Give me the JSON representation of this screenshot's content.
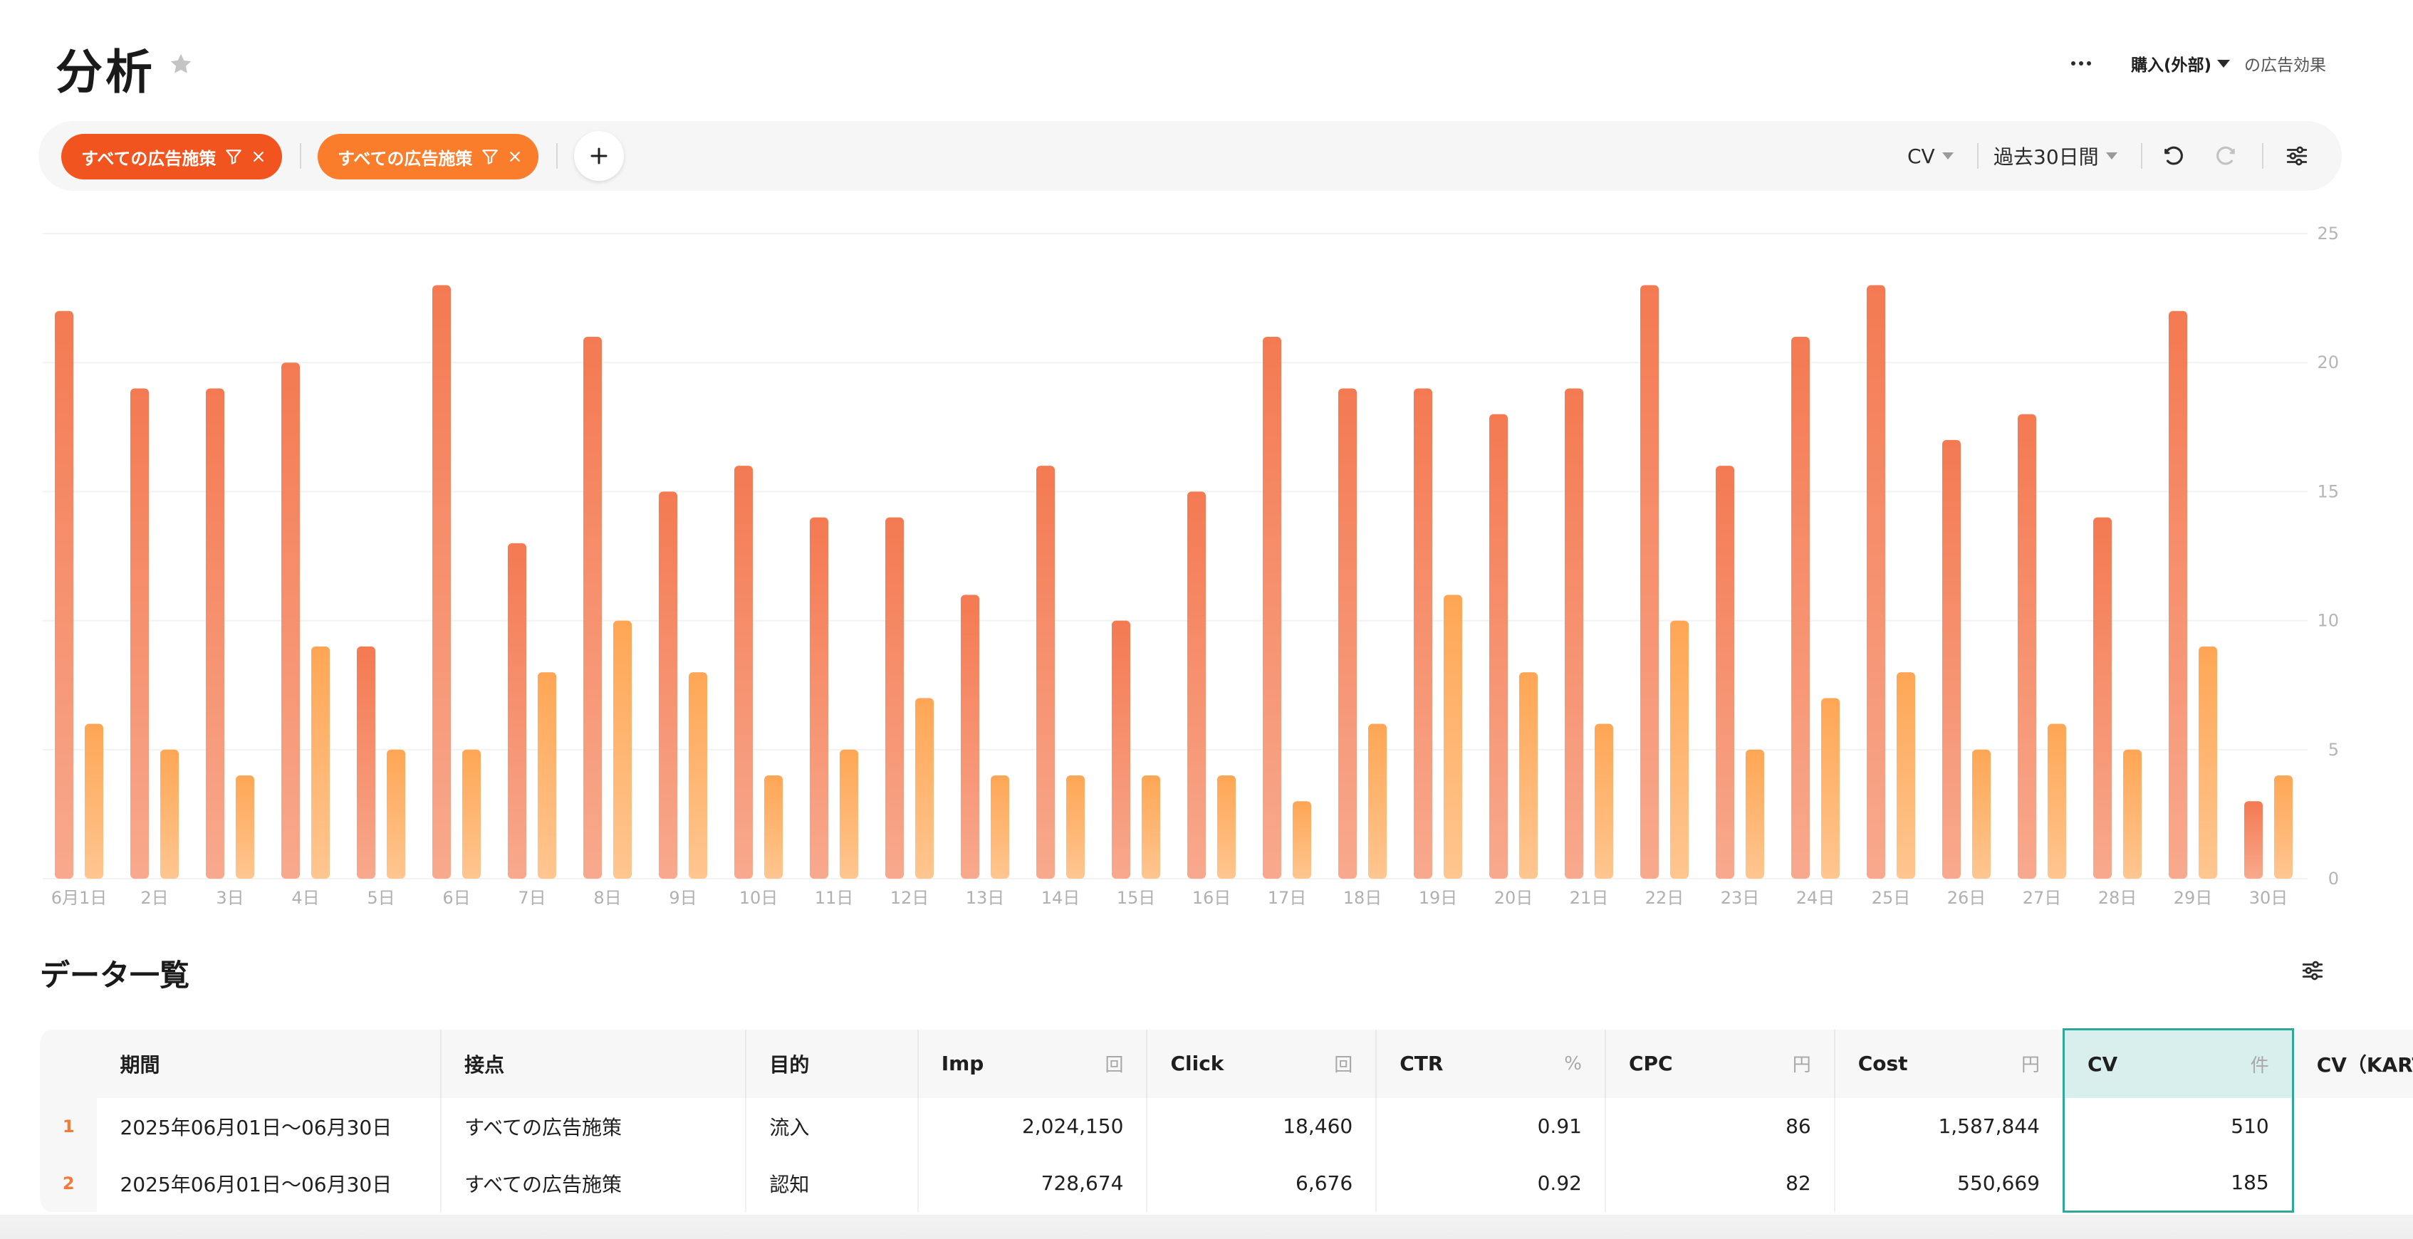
{
  "header": {
    "title": "分析",
    "more_label": "…",
    "conversion_select": "購入(外部)",
    "suffix": "の広告効果"
  },
  "filters": {
    "chips": [
      {
        "label": "すべての広告施策"
      },
      {
        "label": "すべての広告施策"
      }
    ],
    "metric_select": "CV",
    "period_select": "過去30日間"
  },
  "colors": {
    "chip1": "#f2541f",
    "chip2": "#f97d2b",
    "series1": "#f47a52",
    "series2": "#ffae5e",
    "active_column": "#2fa89b"
  },
  "icons": [
    "star-icon",
    "more-icon",
    "filter-icon",
    "close-icon",
    "plus-icon",
    "undo-icon",
    "redo-icon",
    "settings-icon"
  ],
  "chart_data": {
    "type": "bar",
    "title": "",
    "xlabel": "",
    "ylabel": "",
    "ylim": [
      0,
      25
    ],
    "yticks": [
      0,
      5,
      10,
      15,
      20,
      25
    ],
    "y_axis_side": "right",
    "grid": true,
    "categories": [
      "6月1日",
      "2日",
      "3日",
      "4日",
      "5日",
      "6日",
      "7日",
      "8日",
      "9日",
      "10日",
      "11日",
      "12日",
      "13日",
      "14日",
      "15日",
      "16日",
      "17日",
      "18日",
      "19日",
      "20日",
      "21日",
      "22日",
      "23日",
      "24日",
      "25日",
      "26日",
      "27日",
      "28日",
      "29日",
      "30日"
    ],
    "series": [
      {
        "values": [
          22,
          19,
          19,
          20,
          9,
          23,
          13,
          21,
          15,
          16,
          14,
          14,
          11,
          16,
          10,
          15,
          21,
          19,
          19,
          18,
          19,
          23,
          16,
          21,
          23,
          17,
          18,
          14,
          22,
          3
        ]
      },
      {
        "values": [
          6,
          5,
          4,
          9,
          5,
          5,
          8,
          10,
          8,
          4,
          5,
          7,
          4,
          4,
          4,
          4,
          3,
          6,
          11,
          8,
          6,
          10,
          5,
          7,
          8,
          5,
          6,
          5,
          9,
          4
        ]
      }
    ]
  },
  "data_list": {
    "title": "データ一覧",
    "columns": [
      {
        "label": "期間",
        "unit": ""
      },
      {
        "label": "接点",
        "unit": ""
      },
      {
        "label": "目的",
        "unit": ""
      },
      {
        "label": "Imp",
        "unit": "回"
      },
      {
        "label": "Click",
        "unit": "回"
      },
      {
        "label": "CTR",
        "unit": "%"
      },
      {
        "label": "CPC",
        "unit": "円"
      },
      {
        "label": "Cost",
        "unit": "円"
      },
      {
        "label": "CV",
        "unit": "件"
      },
      {
        "label": "CV（KARTE",
        "unit": ""
      }
    ],
    "rows": [
      {
        "index": "1",
        "cells": [
          "2025年06月01日〜06月30日",
          "すべての広告施策",
          "流入",
          "2,024,150",
          "18,460",
          "0.91",
          "86",
          "1,587,844",
          "510",
          ""
        ]
      },
      {
        "index": "2",
        "cells": [
          "2025年06月01日〜06月30日",
          "すべての広告施策",
          "認知",
          "728,674",
          "6,676",
          "0.92",
          "82",
          "550,669",
          "185",
          ""
        ]
      }
    ]
  }
}
